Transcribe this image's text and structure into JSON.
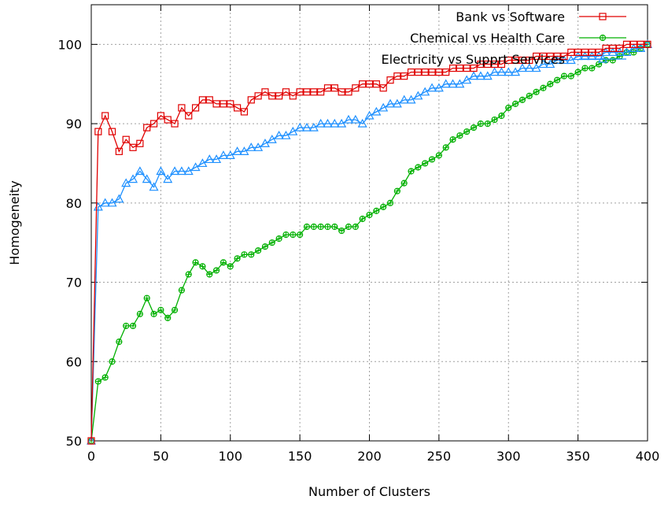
{
  "chart_data": {
    "type": "line",
    "title": "",
    "xlabel": "Number of Clusters",
    "ylabel": "Homogeneity",
    "xlim": [
      0,
      400
    ],
    "ylim": [
      50,
      105
    ],
    "xticks": [
      0,
      50,
      100,
      150,
      200,
      250,
      300,
      350,
      400
    ],
    "yticks": [
      50,
      60,
      70,
      80,
      90,
      100
    ],
    "grid": true,
    "grid_style": "dotted",
    "legend_position": "top-right",
    "series": [
      {
        "name": "Bank vs Software",
        "color": "#e00000",
        "marker": "square",
        "points": [
          [
            0,
            50
          ],
          [
            5,
            89
          ],
          [
            10,
            91
          ],
          [
            15,
            89
          ],
          [
            20,
            86.5
          ],
          [
            25,
            88
          ],
          [
            30,
            87
          ],
          [
            35,
            87.5
          ],
          [
            40,
            89.5
          ],
          [
            45,
            90
          ],
          [
            50,
            91
          ],
          [
            55,
            90.5
          ],
          [
            60,
            90
          ],
          [
            65,
            92
          ],
          [
            70,
            91
          ],
          [
            75,
            92
          ],
          [
            80,
            93
          ],
          [
            85,
            93
          ],
          [
            90,
            92.5
          ],
          [
            95,
            92.5
          ],
          [
            100,
            92.5
          ],
          [
            105,
            92
          ],
          [
            110,
            91.5
          ],
          [
            115,
            93
          ],
          [
            120,
            93.5
          ],
          [
            125,
            94
          ],
          [
            130,
            93.5
          ],
          [
            135,
            93.5
          ],
          [
            140,
            94
          ],
          [
            145,
            93.5
          ],
          [
            150,
            94
          ],
          [
            155,
            94
          ],
          [
            160,
            94
          ],
          [
            165,
            94
          ],
          [
            170,
            94.5
          ],
          [
            175,
            94.5
          ],
          [
            180,
            94
          ],
          [
            185,
            94
          ],
          [
            190,
            94.5
          ],
          [
            195,
            95
          ],
          [
            200,
            95
          ],
          [
            205,
            95
          ],
          [
            210,
            94.5
          ],
          [
            215,
            95.5
          ],
          [
            220,
            96
          ],
          [
            225,
            96
          ],
          [
            230,
            96.5
          ],
          [
            235,
            96.5
          ],
          [
            240,
            96.5
          ],
          [
            245,
            96.5
          ],
          [
            250,
            96.5
          ],
          [
            255,
            96.5
          ],
          [
            260,
            97
          ],
          [
            265,
            97
          ],
          [
            270,
            97
          ],
          [
            275,
            97
          ],
          [
            280,
            97.5
          ],
          [
            285,
            97.5
          ],
          [
            290,
            97.5
          ],
          [
            295,
            97.5
          ],
          [
            300,
            98
          ],
          [
            305,
            98
          ],
          [
            310,
            98
          ],
          [
            315,
            98
          ],
          [
            320,
            98.5
          ],
          [
            325,
            98.5
          ],
          [
            330,
            98.5
          ],
          [
            335,
            98.5
          ],
          [
            340,
            98.5
          ],
          [
            345,
            99
          ],
          [
            350,
            99
          ],
          [
            355,
            99
          ],
          [
            360,
            99
          ],
          [
            365,
            99
          ],
          [
            370,
            99.5
          ],
          [
            375,
            99.5
          ],
          [
            380,
            99.5
          ],
          [
            385,
            100
          ],
          [
            390,
            100
          ],
          [
            395,
            100
          ],
          [
            400,
            100
          ]
        ]
      },
      {
        "name": "Chemical vs Health Care",
        "color": "#00b000",
        "marker": "circle",
        "points": [
          [
            0,
            50
          ],
          [
            5,
            57.5
          ],
          [
            10,
            58
          ],
          [
            15,
            60
          ],
          [
            20,
            62.5
          ],
          [
            25,
            64.5
          ],
          [
            30,
            64.5
          ],
          [
            35,
            66
          ],
          [
            40,
            68
          ],
          [
            45,
            66
          ],
          [
            50,
            66.5
          ],
          [
            55,
            65.5
          ],
          [
            60,
            66.5
          ],
          [
            65,
            69
          ],
          [
            70,
            71
          ],
          [
            75,
            72.5
          ],
          [
            80,
            72
          ],
          [
            85,
            71
          ],
          [
            90,
            71.5
          ],
          [
            95,
            72.5
          ],
          [
            100,
            72
          ],
          [
            105,
            73
          ],
          [
            110,
            73.5
          ],
          [
            115,
            73.5
          ],
          [
            120,
            74
          ],
          [
            125,
            74.5
          ],
          [
            130,
            75
          ],
          [
            135,
            75.5
          ],
          [
            140,
            76
          ],
          [
            145,
            76
          ],
          [
            150,
            76
          ],
          [
            155,
            77
          ],
          [
            160,
            77
          ],
          [
            165,
            77
          ],
          [
            170,
            77
          ],
          [
            175,
            77
          ],
          [
            180,
            76.5
          ],
          [
            185,
            77
          ],
          [
            190,
            77
          ],
          [
            195,
            78
          ],
          [
            200,
            78.5
          ],
          [
            205,
            79
          ],
          [
            210,
            79.5
          ],
          [
            215,
            80
          ],
          [
            220,
            81.5
          ],
          [
            225,
            82.5
          ],
          [
            230,
            84
          ],
          [
            235,
            84.5
          ],
          [
            240,
            85
          ],
          [
            245,
            85.5
          ],
          [
            250,
            86
          ],
          [
            255,
            87
          ],
          [
            260,
            88
          ],
          [
            265,
            88.5
          ],
          [
            270,
            89
          ],
          [
            275,
            89.5
          ],
          [
            280,
            90
          ],
          [
            285,
            90
          ],
          [
            290,
            90.5
          ],
          [
            295,
            91
          ],
          [
            300,
            92
          ],
          [
            305,
            92.5
          ],
          [
            310,
            93
          ],
          [
            315,
            93.5
          ],
          [
            320,
            94
          ],
          [
            325,
            94.5
          ],
          [
            330,
            95
          ],
          [
            335,
            95.5
          ],
          [
            340,
            96
          ],
          [
            345,
            96
          ],
          [
            350,
            96.5
          ],
          [
            355,
            97
          ],
          [
            360,
            97
          ],
          [
            365,
            97.5
          ],
          [
            370,
            98
          ],
          [
            375,
            98
          ],
          [
            380,
            98.5
          ],
          [
            385,
            99
          ],
          [
            390,
            99
          ],
          [
            395,
            99.5
          ],
          [
            400,
            100
          ]
        ]
      },
      {
        "name": "Electricity vs Supprt Services",
        "color": "#1e90ff",
        "marker": "triangle",
        "points": [
          [
            0,
            50
          ],
          [
            5,
            79.5
          ],
          [
            10,
            80
          ],
          [
            15,
            80
          ],
          [
            20,
            80.5
          ],
          [
            25,
            82.5
          ],
          [
            30,
            83
          ],
          [
            35,
            84
          ],
          [
            40,
            83
          ],
          [
            45,
            82
          ],
          [
            50,
            84
          ],
          [
            55,
            83
          ],
          [
            60,
            84
          ],
          [
            65,
            84
          ],
          [
            70,
            84
          ],
          [
            75,
            84.5
          ],
          [
            80,
            85
          ],
          [
            85,
            85.5
          ],
          [
            90,
            85.5
          ],
          [
            95,
            86
          ],
          [
            100,
            86
          ],
          [
            105,
            86.5
          ],
          [
            110,
            86.5
          ],
          [
            115,
            87
          ],
          [
            120,
            87
          ],
          [
            125,
            87.5
          ],
          [
            130,
            88
          ],
          [
            135,
            88.5
          ],
          [
            140,
            88.5
          ],
          [
            145,
            89
          ],
          [
            150,
            89.5
          ],
          [
            155,
            89.5
          ],
          [
            160,
            89.5
          ],
          [
            165,
            90
          ],
          [
            170,
            90
          ],
          [
            175,
            90
          ],
          [
            180,
            90
          ],
          [
            185,
            90.5
          ],
          [
            190,
            90.5
          ],
          [
            195,
            90
          ],
          [
            200,
            91
          ],
          [
            205,
            91.5
          ],
          [
            210,
            92
          ],
          [
            215,
            92.5
          ],
          [
            220,
            92.5
          ],
          [
            225,
            93
          ],
          [
            230,
            93
          ],
          [
            235,
            93.5
          ],
          [
            240,
            94
          ],
          [
            245,
            94.5
          ],
          [
            250,
            94.5
          ],
          [
            255,
            95
          ],
          [
            260,
            95
          ],
          [
            265,
            95
          ],
          [
            270,
            95.5
          ],
          [
            275,
            96
          ],
          [
            280,
            96
          ],
          [
            285,
            96
          ],
          [
            290,
            96.5
          ],
          [
            295,
            96.5
          ],
          [
            300,
            96.5
          ],
          [
            305,
            96.5
          ],
          [
            310,
            97
          ],
          [
            315,
            97
          ],
          [
            320,
            97
          ],
          [
            325,
            97.5
          ],
          [
            330,
            97.5
          ],
          [
            335,
            98
          ],
          [
            340,
            98
          ],
          [
            345,
            98
          ],
          [
            350,
            98.5
          ],
          [
            355,
            98.5
          ],
          [
            360,
            98.5
          ],
          [
            365,
            98.5
          ],
          [
            370,
            99
          ],
          [
            375,
            99
          ],
          [
            380,
            99
          ],
          [
            385,
            99
          ],
          [
            390,
            99.5
          ],
          [
            395,
            99.5
          ],
          [
            400,
            100
          ]
        ]
      }
    ]
  }
}
